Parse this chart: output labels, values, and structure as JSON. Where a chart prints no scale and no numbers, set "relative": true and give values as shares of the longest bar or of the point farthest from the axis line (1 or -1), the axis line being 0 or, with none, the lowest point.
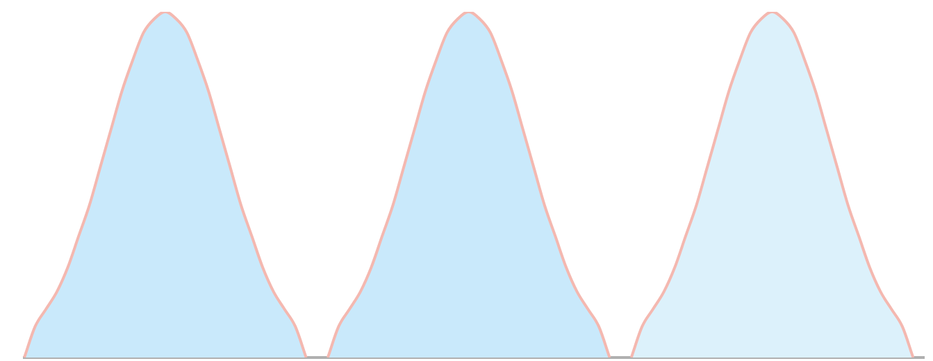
{
  "chart_data": {
    "type": "area",
    "relative": true,
    "tick_labels": false,
    "categories": [
      null,
      null,
      null,
      null,
      null,
      null,
      null,
      null,
      null,
      null,
      null,
      null,
      null,
      null,
      null,
      null,
      null,
      null,
      null,
      null,
      null,
      null,
      null,
      null,
      null,
      null,
      null,
      null,
      null,
      null,
      null,
      null,
      null,
      null,
      null,
      null,
      null,
      null,
      null,
      null,
      null,
      null,
      null,
      null,
      null,
      null,
      null,
      null,
      null,
      null,
      null,
      null,
      null,
      null,
      null,
      null,
      null,
      null,
      null,
      null,
      null,
      null,
      null,
      null,
      null,
      null,
      null,
      null,
      null,
      null,
      null,
      null,
      null,
      null,
      null,
      null,
      null,
      null,
      null,
      null,
      null,
      null,
      null,
      null
    ],
    "series": [
      {
        "color": "#c9e9fb",
        "values": [
          0,
          0.09,
          0.14,
          0.19,
          0.26,
          0.35,
          0.44,
          0.55,
          0.66,
          0.77,
          0.86,
          0.94,
          0.98,
          1,
          0.98,
          0.94,
          0.86,
          0.77,
          0.66,
          0.55,
          0.44,
          0.35,
          0.26,
          0.19,
          0.14,
          0.09,
          0,
          null,
          null,
          null,
          null,
          null,
          null,
          null,
          null,
          null,
          null,
          null,
          null,
          null,
          null,
          null,
          null,
          null,
          null,
          null,
          null,
          null,
          null,
          null,
          null,
          null,
          null,
          null,
          null,
          null,
          null,
          null,
          null,
          null,
          null,
          null,
          null,
          null,
          null,
          null,
          null,
          null,
          null,
          null,
          null,
          null,
          null,
          null,
          null,
          null,
          null,
          null,
          null,
          null,
          null,
          null,
          null,
          null
        ]
      },
      {
        "color": "#c9e9fb",
        "values": [
          null,
          null,
          null,
          null,
          null,
          null,
          null,
          null,
          null,
          null,
          null,
          null,
          null,
          null,
          null,
          null,
          null,
          null,
          null,
          null,
          null,
          null,
          null,
          null,
          null,
          null,
          null,
          null,
          0,
          0.09,
          0.14,
          0.19,
          0.26,
          0.35,
          0.44,
          0.55,
          0.66,
          0.77,
          0.86,
          0.94,
          0.98,
          1,
          0.98,
          0.94,
          0.86,
          0.77,
          0.66,
          0.55,
          0.44,
          0.35,
          0.26,
          0.19,
          0.14,
          0.09,
          0,
          null,
          null,
          null,
          null,
          null,
          null,
          null,
          null,
          null,
          null,
          null,
          null,
          null,
          null,
          null,
          null,
          null,
          null,
          null,
          null,
          null,
          null,
          null,
          null,
          null,
          null,
          null,
          null,
          null
        ]
      },
      {
        "color": "#dcf1fb",
        "values": [
          null,
          null,
          null,
          null,
          null,
          null,
          null,
          null,
          null,
          null,
          null,
          null,
          null,
          null,
          null,
          null,
          null,
          null,
          null,
          null,
          null,
          null,
          null,
          null,
          null,
          null,
          null,
          null,
          null,
          null,
          null,
          null,
          null,
          null,
          null,
          null,
          null,
          null,
          null,
          null,
          null,
          null,
          null,
          null,
          null,
          null,
          null,
          null,
          null,
          null,
          null,
          null,
          null,
          null,
          null,
          null,
          0,
          0.09,
          0.14,
          0.19,
          0.26,
          0.35,
          0.44,
          0.55,
          0.66,
          0.77,
          0.86,
          0.94,
          0.98,
          1,
          0.98,
          0.94,
          0.86,
          0.77,
          0.66,
          0.55,
          0.44,
          0.35,
          0.26,
          0.19,
          0.14,
          0.09,
          0,
          null
        ]
      }
    ]
  }
}
